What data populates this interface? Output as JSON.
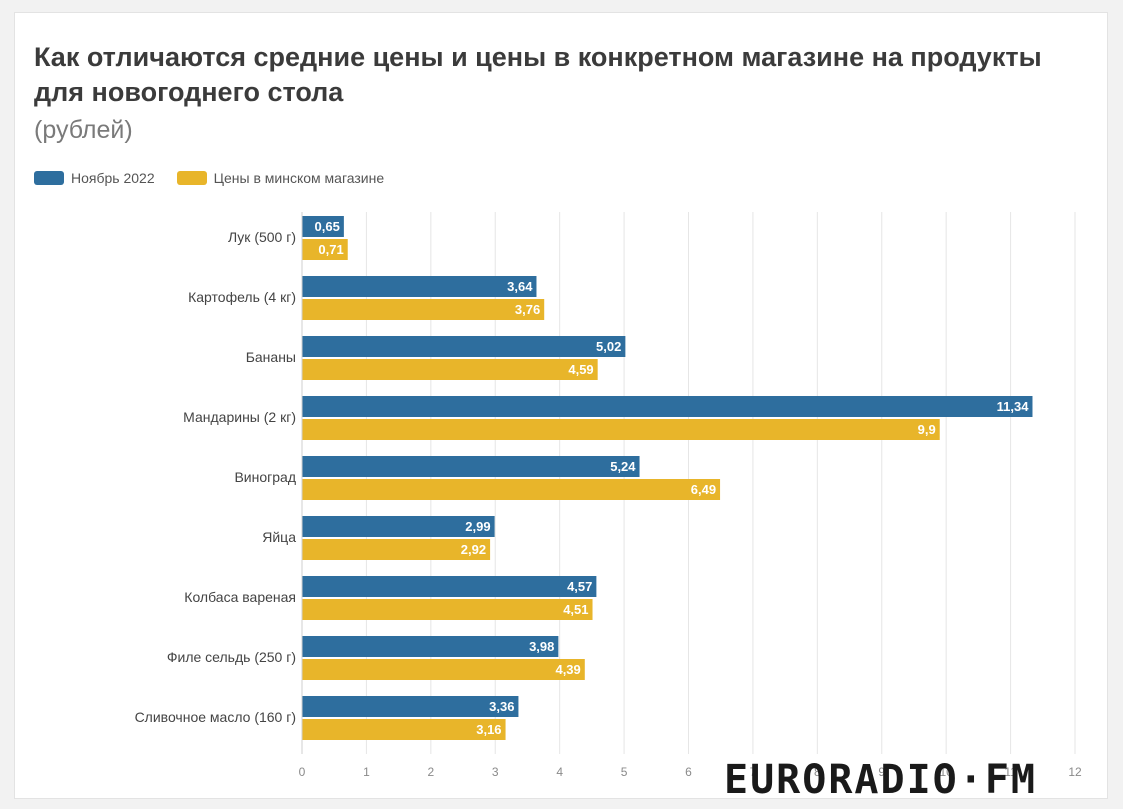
{
  "chart_title": "Как отличаются средние цены и цены в конкретном магазине на продукты для новогоднего стола",
  "chart_subtitle": "(рублей)",
  "watermark": "EURORADIO·FM",
  "chart_data": {
    "type": "bar",
    "orientation": "horizontal",
    "title": "Как отличаются средние цены и цены в конкретном магазине на продукты для новогоднего стола",
    "subtitle": "(рублей)",
    "categories": [
      "Лук (500 г)",
      "Картофель (4 кг)",
      "Бананы",
      "Мандарины (2 кг)",
      "Виноград",
      "Яйца",
      "Колбаса вареная",
      "Филе сельдь (250 г)",
      "Сливочное масло (160 г)"
    ],
    "series": [
      {
        "name": "Ноябрь 2022",
        "color": "#2e6e9e",
        "values": [
          0.65,
          3.64,
          5.02,
          11.34,
          5.24,
          2.99,
          4.57,
          3.98,
          3.36
        ],
        "labels": [
          "0,65",
          "3,64",
          "5,02",
          "11,34",
          "5,24",
          "2,99",
          "4,57",
          "3,98",
          "3,36"
        ]
      },
      {
        "name": "Цены в минском магазине",
        "color": "#e8b52a",
        "values": [
          0.71,
          3.76,
          4.59,
          9.9,
          6.49,
          2.92,
          4.51,
          4.39,
          3.16
        ],
        "labels": [
          "0,71",
          "3,76",
          "4,59",
          "9,9",
          "6,49",
          "2,92",
          "4,51",
          "4,39",
          "3,16"
        ]
      }
    ],
    "xlim": [
      0,
      12
    ],
    "xticks": [
      "0",
      "1",
      "2",
      "3",
      "4",
      "5",
      "6",
      "7",
      "8",
      "9",
      "10",
      "11",
      "12"
    ],
    "grid": true,
    "legend_position": "top-left"
  }
}
